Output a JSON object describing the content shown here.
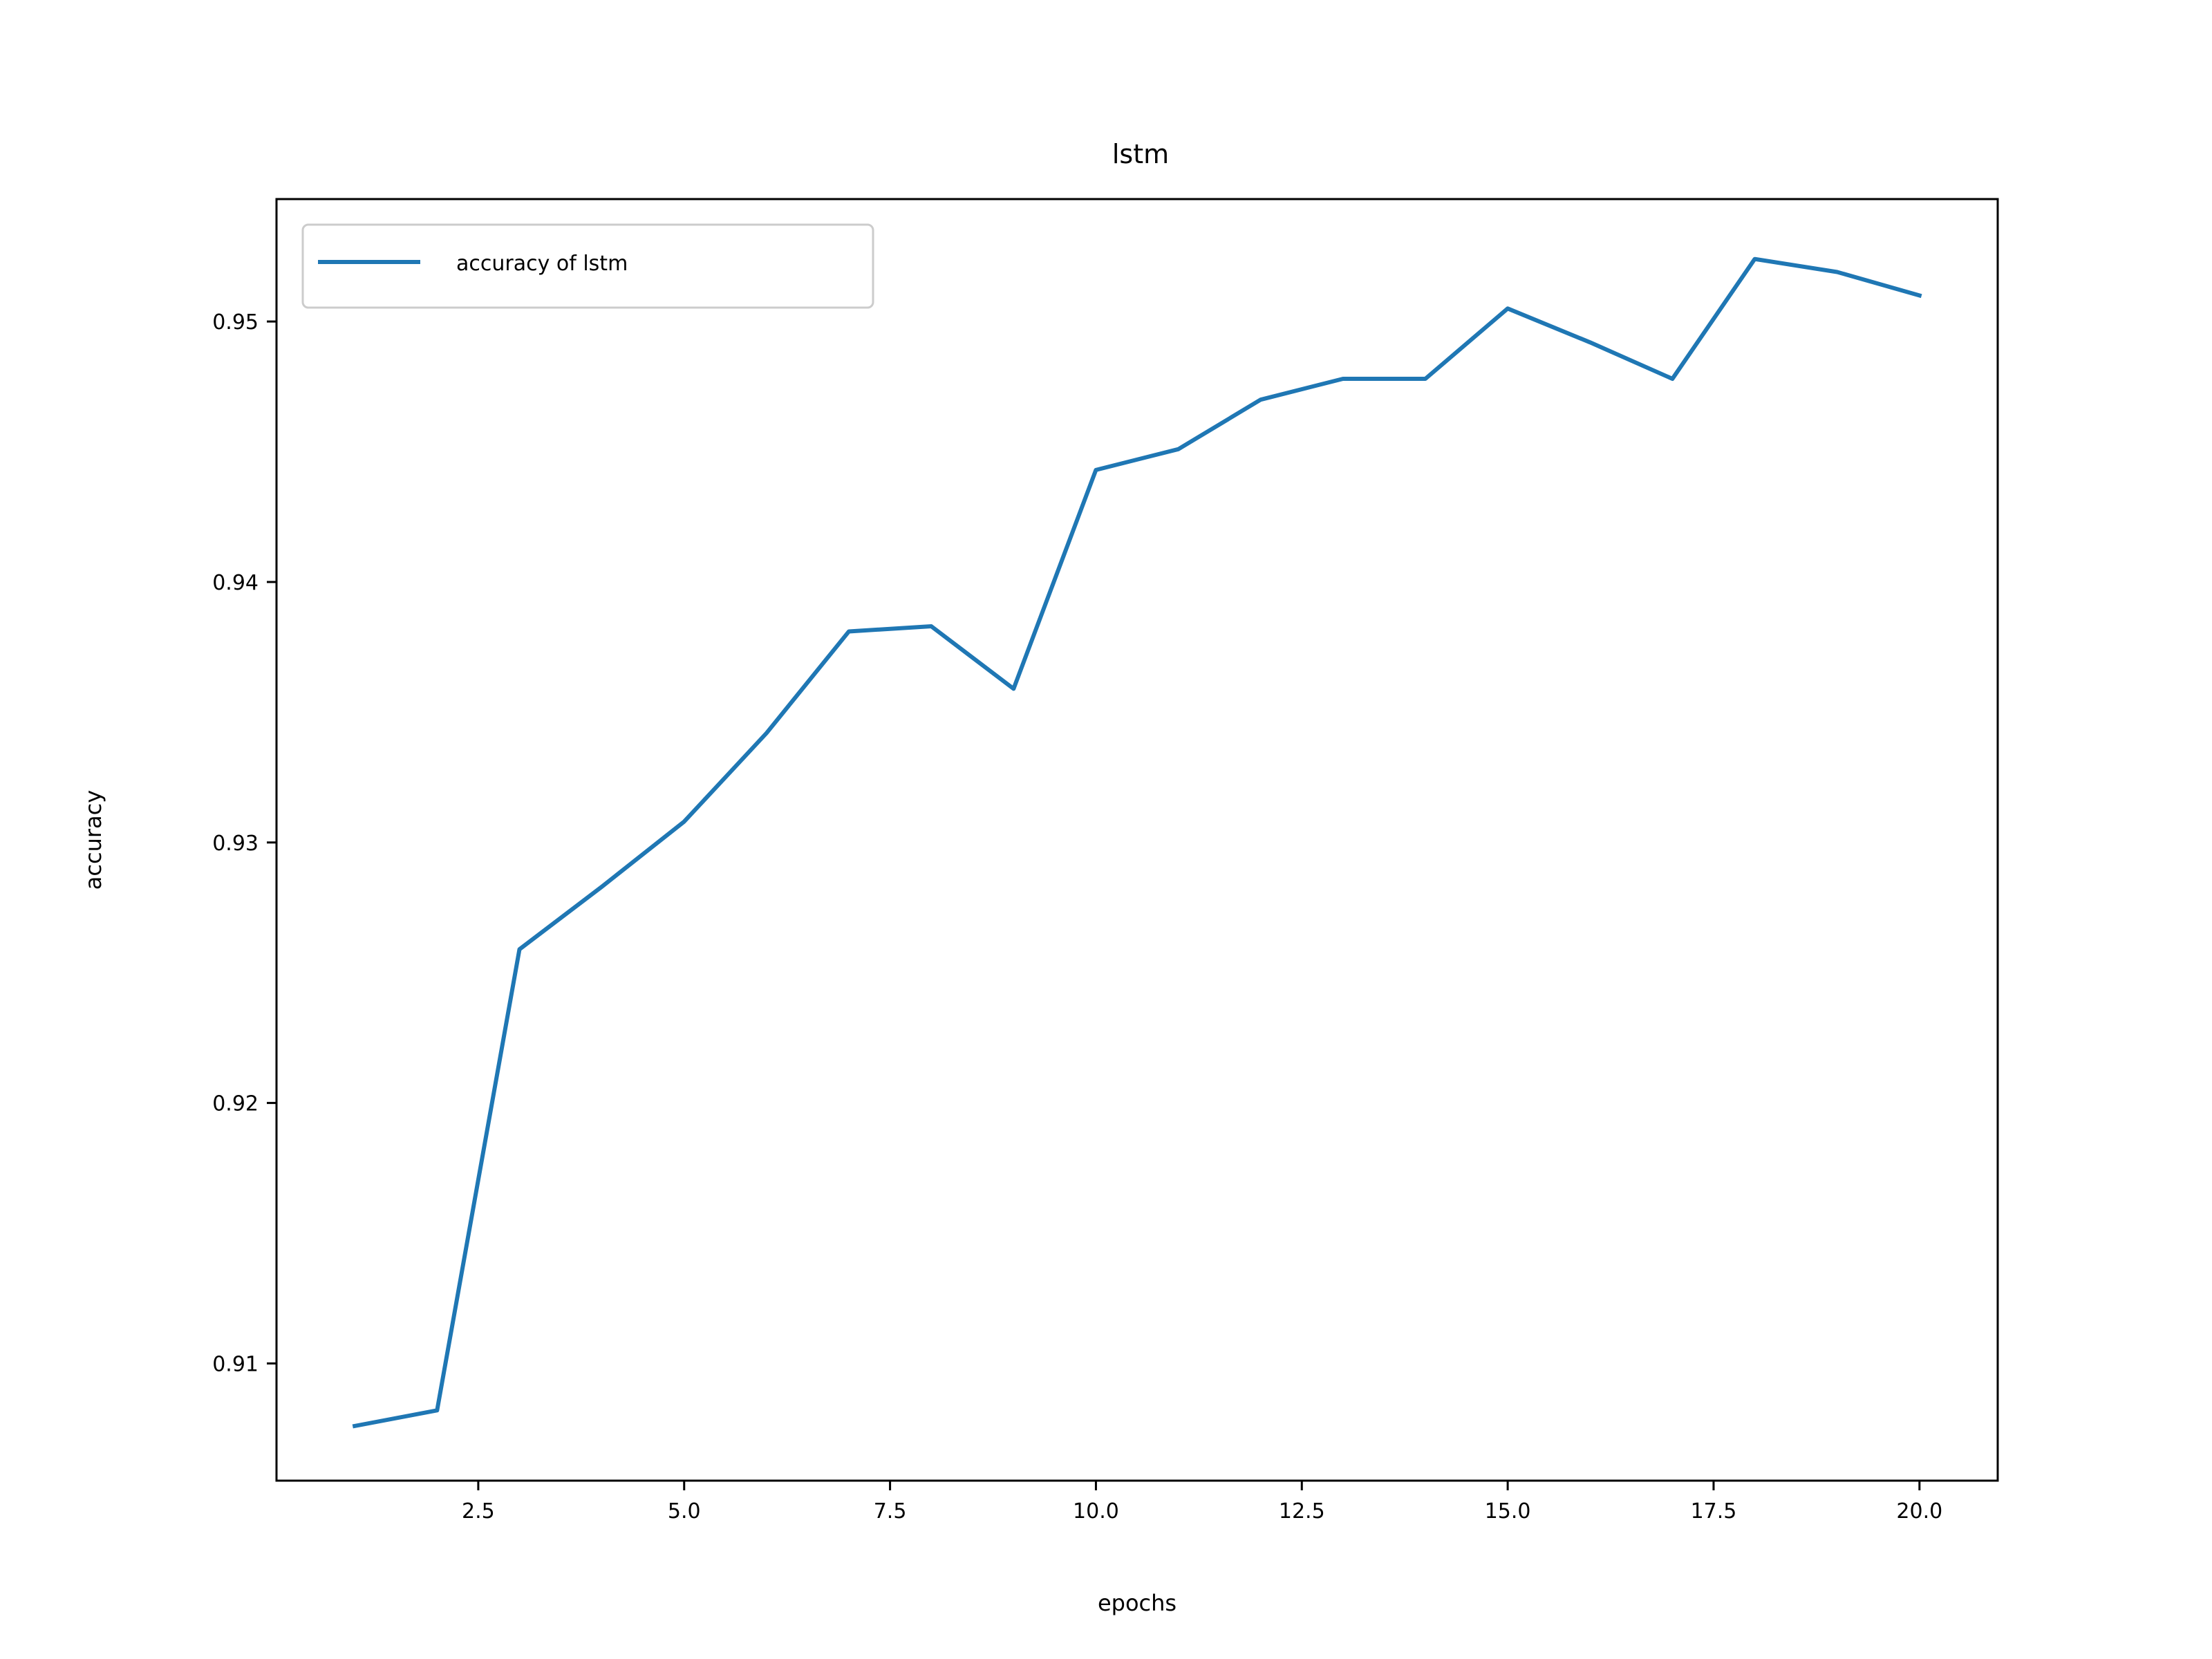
{
  "chart_data": {
    "type": "line",
    "title": "lstm",
    "xlabel": "epochs",
    "ylabel": "accuracy",
    "xlim": [
      0.05,
      20.95
    ],
    "ylim": [
      0.9055,
      0.9547
    ],
    "xticks": [
      2.5,
      5.0,
      7.5,
      10.0,
      12.5,
      15.0,
      17.5,
      20.0
    ],
    "xtick_labels": [
      "2.5",
      "5.0",
      "7.5",
      "10.0",
      "12.5",
      "15.0",
      "17.5",
      "20.0"
    ],
    "yticks": [
      0.91,
      0.92,
      0.93,
      0.94,
      0.95
    ],
    "ytick_labels": [
      "0.91",
      "0.92",
      "0.93",
      "0.94",
      "0.95"
    ],
    "grid": false,
    "legend_position": "upper-left",
    "series": [
      {
        "name": "accuracy of lstm",
        "color": "#1f77b4",
        "x": [
          1,
          2,
          3,
          4,
          5,
          6,
          7,
          8,
          9,
          10,
          11,
          12,
          13,
          14,
          15,
          16,
          17,
          18,
          19,
          20
        ],
        "y": [
          0.9076,
          0.9082,
          0.9259,
          0.9283,
          0.9308,
          0.9342,
          0.9381,
          0.9383,
          0.9359,
          0.9443,
          0.9451,
          0.947,
          0.9478,
          0.9478,
          0.9505,
          0.9492,
          0.9478,
          0.9524,
          0.9519,
          0.951
        ]
      }
    ]
  }
}
